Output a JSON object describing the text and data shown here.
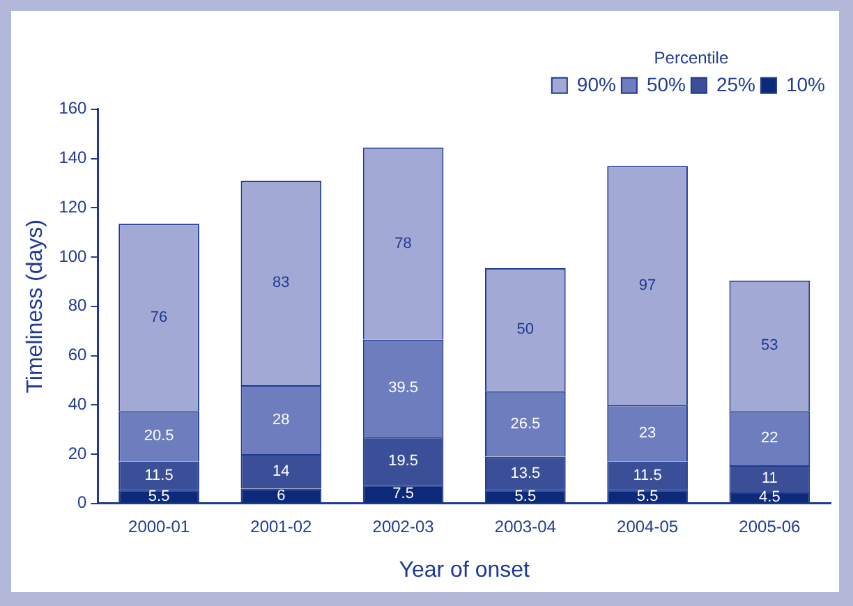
{
  "chart_data": {
    "type": "bar",
    "stacked": true,
    "xlabel": "Year of onset",
    "ylabel": "Timeliness (days)",
    "legend_title": "Percentile",
    "legend": "top right",
    "data_labels": true,
    "categories": [
      "2000-01",
      "2001-02",
      "2002-03",
      "2003-04",
      "2004-05",
      "2005-06"
    ],
    "ylim": [
      0,
      160
    ],
    "yticks": [
      0,
      20,
      40,
      60,
      80,
      100,
      120,
      140,
      160
    ],
    "grid": false,
    "series": [
      {
        "name": "10%",
        "color": "#0d2a7a",
        "values": [
          5.5,
          6,
          7.5,
          5.5,
          5.5,
          4.5
        ]
      },
      {
        "name": "25%",
        "color": "#3b4f98",
        "values": [
          11.5,
          14,
          19.5,
          13.5,
          11.5,
          11
        ]
      },
      {
        "name": "50%",
        "color": "#6e7dbd",
        "values": [
          20.5,
          28,
          39.5,
          26.5,
          23,
          22
        ]
      },
      {
        "name": "90%",
        "color": "#a3a9d5",
        "values": [
          76,
          83,
          78,
          50,
          97,
          53
        ]
      }
    ]
  }
}
